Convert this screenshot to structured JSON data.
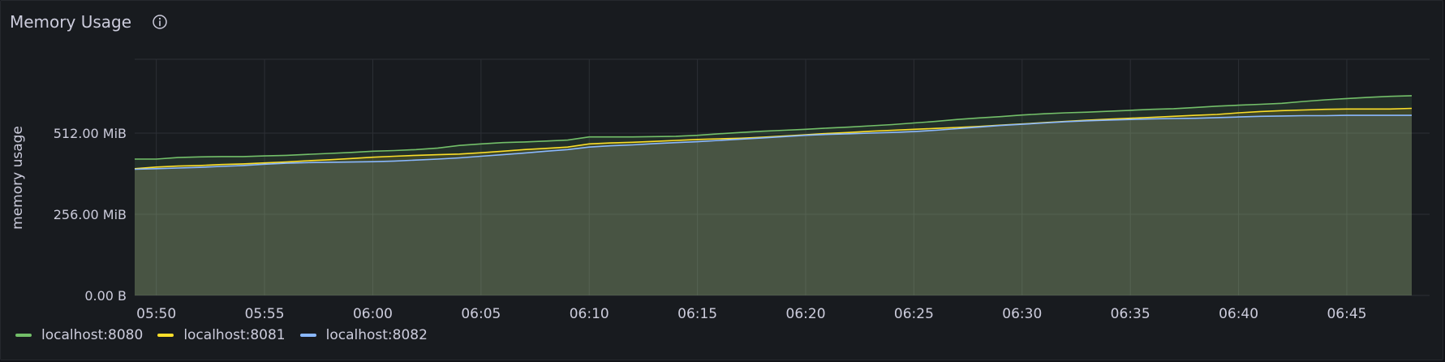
{
  "panel": {
    "title": "Memory Usage",
    "info_icon": "info-circle-icon"
  },
  "colors": {
    "background": "#181b1f",
    "grid": "#2c2f35",
    "text": "#ccccdc",
    "fill": "#3f4a3b"
  },
  "chart_data": {
    "type": "line",
    "title": "Memory Usage",
    "xlabel": "",
    "ylabel": "memory usage",
    "y_unit": "MiB",
    "ylim": [
      0,
      745
    ],
    "yticks": [
      {
        "value": 0,
        "label": "0.00 B"
      },
      {
        "value": 256,
        "label": "256.00 MiB"
      },
      {
        "value": 512,
        "label": "512.00 MiB"
      }
    ],
    "xlim": [
      "05:49",
      "06:48"
    ],
    "xticks": [
      "05:50",
      "05:55",
      "06:00",
      "06:05",
      "06:10",
      "06:15",
      "06:20",
      "06:25",
      "06:30",
      "06:35",
      "06:40",
      "06:45"
    ],
    "grid": true,
    "legend_position": "bottom-left",
    "series": [
      {
        "name": "localhost:8080",
        "color": "#73bf69",
        "points": [
          [
            "05:49",
            430
          ],
          [
            "05:50",
            430
          ],
          [
            "05:51",
            435
          ],
          [
            "05:52",
            437
          ],
          [
            "05:53",
            438
          ],
          [
            "05:54",
            438
          ],
          [
            "05:55",
            440
          ],
          [
            "05:56",
            442
          ],
          [
            "05:57",
            445
          ],
          [
            "05:58",
            448
          ],
          [
            "05:59",
            451
          ],
          [
            "06:00",
            455
          ],
          [
            "06:01",
            457
          ],
          [
            "06:02",
            460
          ],
          [
            "06:03",
            465
          ],
          [
            "06:04",
            473
          ],
          [
            "06:05",
            478
          ],
          [
            "06:06",
            482
          ],
          [
            "06:07",
            484
          ],
          [
            "06:08",
            487
          ],
          [
            "06:09",
            490
          ],
          [
            "06:10",
            500
          ],
          [
            "06:11",
            500
          ],
          [
            "06:12",
            500
          ],
          [
            "06:13",
            501
          ],
          [
            "06:14",
            502
          ],
          [
            "06:15",
            505
          ],
          [
            "06:16",
            510
          ],
          [
            "06:17",
            514
          ],
          [
            "06:18",
            518
          ],
          [
            "06:19",
            521
          ],
          [
            "06:20",
            524
          ],
          [
            "06:21",
            528
          ],
          [
            "06:22",
            531
          ],
          [
            "06:23",
            535
          ],
          [
            "06:24",
            539
          ],
          [
            "06:25",
            544
          ],
          [
            "06:26",
            549
          ],
          [
            "06:27",
            555
          ],
          [
            "06:28",
            560
          ],
          [
            "06:29",
            564
          ],
          [
            "06:30",
            569
          ],
          [
            "06:31",
            573
          ],
          [
            "06:32",
            576
          ],
          [
            "06:33",
            578
          ],
          [
            "06:34",
            581
          ],
          [
            "06:35",
            584
          ],
          [
            "06:36",
            587
          ],
          [
            "06:37",
            589
          ],
          [
            "06:38",
            593
          ],
          [
            "06:39",
            597
          ],
          [
            "06:40",
            600
          ],
          [
            "06:41",
            603
          ],
          [
            "06:42",
            606
          ],
          [
            "06:43",
            612
          ],
          [
            "06:44",
            617
          ],
          [
            "06:45",
            621
          ],
          [
            "06:46",
            625
          ],
          [
            "06:47",
            628
          ],
          [
            "06:48",
            630
          ]
        ]
      },
      {
        "name": "localhost:8081",
        "color": "#fade2a",
        "points": [
          [
            "05:49",
            400
          ],
          [
            "05:50",
            405
          ],
          [
            "05:51",
            408
          ],
          [
            "05:52",
            410
          ],
          [
            "05:53",
            413
          ],
          [
            "05:54",
            415
          ],
          [
            "05:55",
            418
          ],
          [
            "05:56",
            421
          ],
          [
            "05:57",
            425
          ],
          [
            "05:58",
            428
          ],
          [
            "05:59",
            432
          ],
          [
            "06:00",
            436
          ],
          [
            "06:01",
            439
          ],
          [
            "06:02",
            442
          ],
          [
            "06:03",
            444
          ],
          [
            "06:04",
            446
          ],
          [
            "06:05",
            450
          ],
          [
            "06:06",
            455
          ],
          [
            "06:07",
            460
          ],
          [
            "06:08",
            464
          ],
          [
            "06:09",
            468
          ],
          [
            "06:10",
            478
          ],
          [
            "06:11",
            481
          ],
          [
            "06:12",
            483
          ],
          [
            "06:13",
            486
          ],
          [
            "06:14",
            489
          ],
          [
            "06:15",
            492
          ],
          [
            "06:16",
            494
          ],
          [
            "06:17",
            496
          ],
          [
            "06:18",
            499
          ],
          [
            "06:19",
            503
          ],
          [
            "06:20",
            507
          ],
          [
            "06:21",
            511
          ],
          [
            "06:22",
            514
          ],
          [
            "06:23",
            518
          ],
          [
            "06:24",
            521
          ],
          [
            "06:25",
            524
          ],
          [
            "06:26",
            527
          ],
          [
            "06:27",
            530
          ],
          [
            "06:28",
            533
          ],
          [
            "06:29",
            537
          ],
          [
            "06:30",
            541
          ],
          [
            "06:31",
            545
          ],
          [
            "06:32",
            549
          ],
          [
            "06:33",
            553
          ],
          [
            "06:34",
            556
          ],
          [
            "06:35",
            559
          ],
          [
            "06:36",
            562
          ],
          [
            "06:37",
            565
          ],
          [
            "06:38",
            568
          ],
          [
            "06:39",
            571
          ],
          [
            "06:40",
            576
          ],
          [
            "06:41",
            580
          ],
          [
            "06:42",
            583
          ],
          [
            "06:43",
            585
          ],
          [
            "06:44",
            587
          ],
          [
            "06:45",
            588
          ],
          [
            "06:46",
            588
          ],
          [
            "06:47",
            588
          ],
          [
            "06:48",
            590
          ]
        ]
      },
      {
        "name": "localhost:8082",
        "color": "#8ab8ff",
        "points": [
          [
            "05:49",
            398
          ],
          [
            "05:50",
            400
          ],
          [
            "05:51",
            402
          ],
          [
            "05:52",
            404
          ],
          [
            "05:53",
            407
          ],
          [
            "05:54",
            410
          ],
          [
            "05:55",
            414
          ],
          [
            "05:56",
            417
          ],
          [
            "05:57",
            419
          ],
          [
            "05:58",
            420
          ],
          [
            "05:59",
            421
          ],
          [
            "06:00",
            422
          ],
          [
            "06:01",
            424
          ],
          [
            "06:02",
            427
          ],
          [
            "06:03",
            430
          ],
          [
            "06:04",
            434
          ],
          [
            "06:05",
            439
          ],
          [
            "06:06",
            444
          ],
          [
            "06:07",
            449
          ],
          [
            "06:08",
            455
          ],
          [
            "06:09",
            460
          ],
          [
            "06:10",
            468
          ],
          [
            "06:11",
            472
          ],
          [
            "06:12",
            475
          ],
          [
            "06:13",
            479
          ],
          [
            "06:14",
            482
          ],
          [
            "06:15",
            485
          ],
          [
            "06:16",
            489
          ],
          [
            "06:17",
            493
          ],
          [
            "06:18",
            497
          ],
          [
            "06:19",
            501
          ],
          [
            "06:20",
            505
          ],
          [
            "06:21",
            508
          ],
          [
            "06:22",
            510
          ],
          [
            "06:23",
            512
          ],
          [
            "06:24",
            514
          ],
          [
            "06:25",
            517
          ],
          [
            "06:26",
            521
          ],
          [
            "06:27",
            526
          ],
          [
            "06:28",
            531
          ],
          [
            "06:29",
            536
          ],
          [
            "06:30",
            540
          ],
          [
            "06:31",
            544
          ],
          [
            "06:32",
            548
          ],
          [
            "06:33",
            551
          ],
          [
            "06:34",
            553
          ],
          [
            "06:35",
            555
          ],
          [
            "06:36",
            557
          ],
          [
            "06:37",
            558
          ],
          [
            "06:38",
            559
          ],
          [
            "06:39",
            561
          ],
          [
            "06:40",
            563
          ],
          [
            "06:41",
            565
          ],
          [
            "06:42",
            566
          ],
          [
            "06:43",
            567
          ],
          [
            "06:44",
            567
          ],
          [
            "06:45",
            568
          ],
          [
            "06:46",
            568
          ],
          [
            "06:47",
            568
          ],
          [
            "06:48",
            568
          ]
        ]
      }
    ]
  }
}
